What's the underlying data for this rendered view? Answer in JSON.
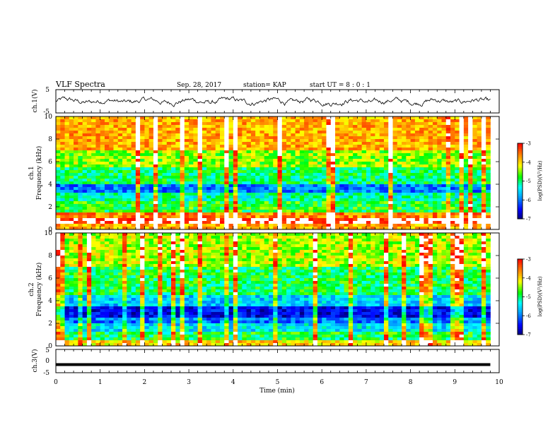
{
  "header": {
    "title": "VLF Spectra",
    "date": "Sep. 28, 2017",
    "station": "station= KAP",
    "start_ut": "start  UT =  8 : 0  : 1"
  },
  "colors": {
    "background": "#ffffff",
    "trace": "#000000",
    "colormap": [
      "#000080",
      "#0000ff",
      "#00a0ff",
      "#00ffff",
      "#00ff00",
      "#ffff00",
      "#ff8000",
      "#ff0000",
      "#ffffff"
    ]
  },
  "chart_data": [
    {
      "type": "line",
      "id": "ch1-waveform",
      "ylabel": "ch.1(V)",
      "ylim": [
        -5,
        5
      ],
      "yticks": [
        "5",
        "-5"
      ],
      "xlim": [
        0,
        10
      ],
      "note_values_range_v": [
        -3.0,
        2.5
      ]
    },
    {
      "type": "heatmap",
      "id": "ch1-spectrogram",
      "ylabel_lines": [
        "ch.1",
        "Frequency  (kHz)"
      ],
      "ylim": [
        0,
        10
      ],
      "yticks": [
        "0",
        "2",
        "4",
        "6",
        "8",
        "10"
      ],
      "xlim": [
        0,
        9.8
      ],
      "colorbar": {
        "label": "log(PSD)(V²/Hz)",
        "range": [
          -7,
          -3
        ],
        "ticks": [
          "-3",
          "-4",
          "-5",
          "-6",
          "-7"
        ]
      },
      "band_profile": [
        {
          "fmin": 0.0,
          "fmax": 0.4,
          "level": -3.8
        },
        {
          "fmin": 0.4,
          "fmax": 0.9,
          "level": -2.9
        },
        {
          "fmin": 0.9,
          "fmax": 1.6,
          "level": -3.6
        },
        {
          "fmin": 1.6,
          "fmax": 2.6,
          "level": -4.8
        },
        {
          "fmin": 2.6,
          "fmax": 3.2,
          "level": -5.2
        },
        {
          "fmin": 3.2,
          "fmax": 4.0,
          "level": -6.0
        },
        {
          "fmin": 4.0,
          "fmax": 5.5,
          "level": -5.0
        },
        {
          "fmin": 5.5,
          "fmax": 7.0,
          "level": -4.5
        },
        {
          "fmin": 7.0,
          "fmax": 10.0,
          "level": -3.8
        }
      ]
    },
    {
      "type": "heatmap",
      "id": "ch2-spectrogram",
      "ylabel_lines": [
        "ch.2",
        "Frequency  (kHz)"
      ],
      "ylim": [
        0,
        10
      ],
      "yticks": [
        "0",
        "2",
        "4",
        "6",
        "8",
        "10"
      ],
      "xlim": [
        0,
        9.8
      ],
      "colorbar": {
        "label": "log(PSD)(V²/Hz)",
        "range": [
          -7,
          -3
        ],
        "ticks": [
          "-3",
          "-4",
          "-5",
          "-6",
          "-7"
        ]
      },
      "band_profile": [
        {
          "fmin": 0.0,
          "fmax": 0.4,
          "level": -4.0
        },
        {
          "fmin": 0.4,
          "fmax": 1.2,
          "level": -4.9
        },
        {
          "fmin": 1.2,
          "fmax": 2.0,
          "level": -5.5
        },
        {
          "fmin": 2.0,
          "fmax": 2.6,
          "level": -6.0
        },
        {
          "fmin": 2.6,
          "fmax": 3.4,
          "level": -6.6
        },
        {
          "fmin": 3.4,
          "fmax": 4.5,
          "level": -5.6
        },
        {
          "fmin": 4.5,
          "fmax": 7.0,
          "level": -4.9
        },
        {
          "fmin": 7.0,
          "fmax": 10.0,
          "level": -4.4
        }
      ]
    },
    {
      "type": "line",
      "id": "ch3-waveform",
      "ylabel": "ch.3(V)",
      "ylim": [
        -5,
        5
      ],
      "yticks": [
        "5",
        "0",
        "-5"
      ],
      "xlim": [
        0,
        10
      ],
      "constant_value_v": -1.5
    }
  ],
  "xaxis": {
    "label": "Time  (min)",
    "ticks": [
      "0",
      "1",
      "2",
      "3",
      "4",
      "5",
      "6",
      "7",
      "8",
      "9",
      "10"
    ],
    "range": [
      0,
      10
    ]
  }
}
